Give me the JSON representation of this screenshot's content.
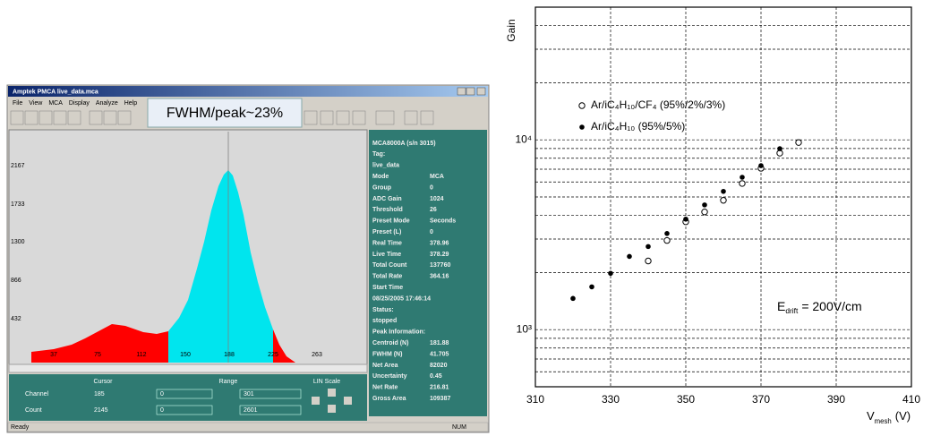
{
  "screenshot": {
    "window_title": "Amptek PMCA   live_data.mca",
    "menu": [
      "File",
      "View",
      "MCA",
      "Display",
      "Analyze",
      "Help"
    ],
    "callout": "FWHM/peak~23%",
    "y_labels": [
      "2167",
      "1733",
      "1300",
      "866",
      "432"
    ],
    "x_labels": [
      "37",
      "75",
      "112",
      "150",
      "188",
      "225",
      "263"
    ],
    "info": [
      [
        "MCA8000A (s/n 3015)"
      ],
      [
        "Tag:"
      ],
      [
        "live_data"
      ],
      [
        "Mode",
        "MCA"
      ],
      [
        "Group",
        "0"
      ],
      [
        "ADC Gain",
        "1024"
      ],
      [
        "Threshold",
        "26"
      ],
      [
        "Preset Mode",
        "Seconds"
      ],
      [
        "Preset (L)",
        "0"
      ],
      [
        "Real Time",
        "378.96"
      ],
      [
        "Live Time",
        "378.29"
      ],
      [
        "Total Count",
        "137760"
      ],
      [
        "Total Rate",
        "364.16"
      ],
      [
        "Start Time"
      ],
      [
        "08/25/2005 17:46:14"
      ],
      [
        "Status:"
      ],
      [
        "stopped"
      ],
      [
        "Peak Information:"
      ],
      [
        "Centroid (N)",
        "181.88"
      ],
      [
        "FWHM (N)",
        "41.705"
      ],
      [
        "Net Area",
        "82020"
      ],
      [
        "Uncertainty",
        "0.45"
      ],
      [
        "Net Rate",
        "216.81"
      ],
      [
        "Gross Area",
        "109387"
      ]
    ],
    "controls": {
      "cursor": "Cursor",
      "range": "Range",
      "scale": "LIN Scale",
      "rows": [
        [
          "Channel",
          "185",
          "0",
          "301"
        ],
        [
          "Count",
          "2145",
          "0",
          "2601"
        ]
      ]
    },
    "status": [
      "Ready",
      "NUM"
    ]
  },
  "chart_data": {
    "type": "scatter",
    "ylabel": "Gain",
    "xlabel": [
      "V",
      "mesh",
      "(V)"
    ],
    "annotation": [
      "E",
      "drift",
      "= 200V/cm"
    ],
    "xlim": [
      310,
      410
    ],
    "ylim": [
      500,
      50000
    ],
    "log_y": true,
    "grid": true,
    "legend": "upper-left",
    "xticks": [
      310,
      330,
      350,
      370,
      390,
      410
    ],
    "yticks": [
      {
        "value": 1000,
        "label": "10³"
      },
      {
        "value": 10000,
        "label": "10⁴"
      }
    ],
    "yminor": [
      600,
      700,
      800,
      900,
      2000,
      3000,
      4000,
      5000,
      6000,
      7000,
      8000,
      9000,
      20000,
      30000,
      40000
    ],
    "series": [
      {
        "name": "Ar/iC₄H₁₀/CF₄ (95%/2%/3%)",
        "marker": "open",
        "color": "#000000",
        "x": [
          340,
          345,
          350,
          355,
          360,
          365,
          370,
          375,
          380
        ],
        "values": [
          2300,
          2950,
          3700,
          4170,
          4800,
          5890,
          7080,
          8510,
          9680
        ]
      },
      {
        "name": "Ar/iC₄H₁₀ (95%/5%)",
        "marker": "filled",
        "color": "#000000",
        "x": [
          320,
          325,
          330,
          335,
          340,
          345,
          350,
          355,
          360,
          365,
          370,
          375
        ],
        "values": [
          1460,
          1680,
          1980,
          2430,
          2740,
          3210,
          3820,
          4540,
          5350,
          6350,
          7310,
          8980
        ]
      }
    ]
  }
}
